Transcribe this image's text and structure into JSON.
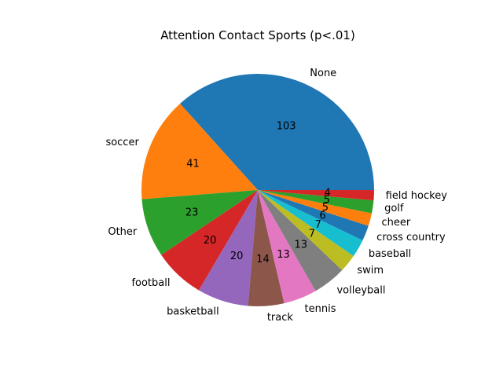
{
  "chart_data": {
    "type": "pie",
    "title": "Attention Contact  Sports (p<.01)",
    "slices": [
      {
        "label": "None",
        "value": 103,
        "color": "#1f77b4"
      },
      {
        "label": "soccer",
        "value": 41,
        "color": "#ff7f0e"
      },
      {
        "label": "Other",
        "value": 23,
        "color": "#2ca02c"
      },
      {
        "label": "football",
        "value": 20,
        "color": "#d62728"
      },
      {
        "label": "basketball",
        "value": 20,
        "color": "#9467bd"
      },
      {
        "label": "track",
        "value": 14,
        "color": "#8c564b"
      },
      {
        "label": "tennis",
        "value": 13,
        "color": "#e377c2"
      },
      {
        "label": "volleyball",
        "value": 13,
        "color": "#7f7f7f"
      },
      {
        "label": "swim",
        "value": 7,
        "color": "#bcbd22"
      },
      {
        "label": "baseball",
        "value": 7,
        "color": "#17becf"
      },
      {
        "label": "cross country",
        "value": 6,
        "color": "#1f77b4"
      },
      {
        "label": "cheer",
        "value": 5,
        "color": "#ff7f0e"
      },
      {
        "label": "golf",
        "value": 5,
        "color": "#2ca02c"
      },
      {
        "label": "field hockey",
        "value": 4,
        "color": "#d62728"
      }
    ],
    "start_angle_deg": 0,
    "direction": "counterclockwise",
    "legend": "none"
  }
}
